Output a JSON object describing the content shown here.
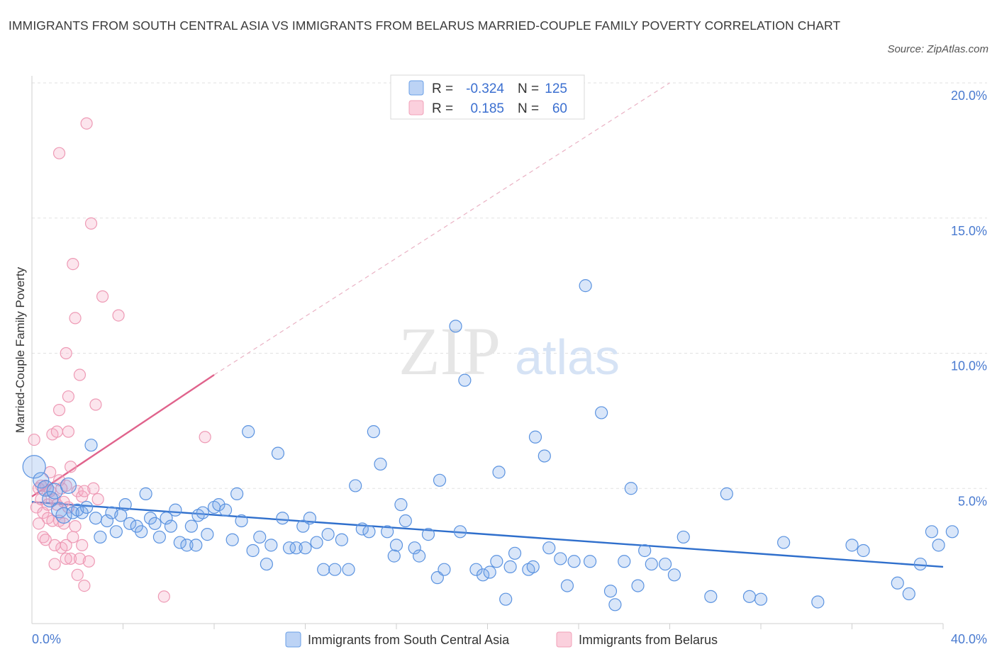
{
  "title": "IMMIGRANTS FROM SOUTH CENTRAL ASIA VS IMMIGRANTS FROM BELARUS MARRIED-COUPLE FAMILY POVERTY CORRELATION CHART",
  "source": "Source: ZipAtlas.com",
  "watermark": {
    "zip": "ZIP",
    "atlas": "atlas"
  },
  "colors": {
    "blue": "#6a9fe6",
    "pink": "#f0a0b8",
    "blue_line": "#2f6fcc",
    "pink_line": "#e0638c",
    "tick": "#4a7bd0"
  },
  "legend": {
    "r_label": "R =",
    "n_label": "N =",
    "rows": [
      {
        "r": "-0.324",
        "n": "125"
      },
      {
        "r": "0.185",
        "n": "60"
      }
    ]
  },
  "bottom_legend": [
    "Immigrants from South Central Asia",
    "Immigrants from Belarus"
  ],
  "chart_data": {
    "type": "scatter",
    "title": "IMMIGRANTS FROM SOUTH CENTRAL ASIA VS IMMIGRANTS FROM BELARUS MARRIED-COUPLE FAMILY POVERTY CORRELATION CHART",
    "xlabel": "",
    "ylabel": "Married-Couple Family Poverty",
    "xlim": [
      0,
      40
    ],
    "ylim": [
      0,
      20
    ],
    "x_tick_labels": [
      "0.0%",
      "40.0%"
    ],
    "y_ticks": [
      5,
      10,
      15,
      20
    ],
    "y_tick_labels": [
      "5.0%",
      "10.0%",
      "15.0%",
      "20.0%"
    ],
    "grid": true,
    "legend_position": "top-center",
    "series": [
      {
        "name": "Immigrants from South Central Asia",
        "color": "#6a9fe6",
        "r": -0.324,
        "n": 125,
        "trend": {
          "x": [
            0,
            40
          ],
          "y": [
            4.5,
            2.1
          ]
        },
        "points": [
          [
            0.1,
            5.8
          ],
          [
            0.4,
            5.3
          ],
          [
            0.6,
            5.0
          ],
          [
            0.8,
            4.6
          ],
          [
            1.0,
            4.9
          ],
          [
            1.2,
            4.2
          ],
          [
            1.4,
            4.0
          ],
          [
            1.6,
            5.1
          ],
          [
            1.8,
            4.1
          ],
          [
            2.0,
            4.2
          ],
          [
            2.2,
            4.1
          ],
          [
            2.4,
            4.3
          ],
          [
            2.6,
            6.6
          ],
          [
            2.8,
            3.9
          ],
          [
            3.0,
            3.2
          ],
          [
            3.3,
            3.8
          ],
          [
            3.5,
            4.1
          ],
          [
            3.7,
            3.4
          ],
          [
            3.9,
            4.0
          ],
          [
            4.1,
            4.4
          ],
          [
            4.3,
            3.7
          ],
          [
            4.6,
            3.6
          ],
          [
            4.8,
            3.4
          ],
          [
            5.0,
            4.8
          ],
          [
            5.2,
            3.9
          ],
          [
            5.4,
            3.7
          ],
          [
            5.6,
            3.2
          ],
          [
            5.9,
            3.9
          ],
          [
            6.1,
            3.6
          ],
          [
            6.3,
            4.2
          ],
          [
            6.5,
            3.0
          ],
          [
            6.8,
            2.9
          ],
          [
            7.0,
            3.6
          ],
          [
            7.3,
            4.0
          ],
          [
            7.5,
            4.1
          ],
          [
            7.7,
            3.3
          ],
          [
            8.0,
            4.3
          ],
          [
            8.2,
            4.4
          ],
          [
            8.5,
            4.2
          ],
          [
            8.8,
            3.1
          ],
          [
            9.0,
            4.8
          ],
          [
            9.2,
            3.8
          ],
          [
            9.5,
            7.1
          ],
          [
            9.7,
            2.7
          ],
          [
            10.0,
            3.2
          ],
          [
            10.3,
            2.2
          ],
          [
            10.5,
            2.9
          ],
          [
            10.8,
            6.3
          ],
          [
            11.0,
            3.9
          ],
          [
            11.3,
            2.8
          ],
          [
            11.6,
            2.8
          ],
          [
            11.9,
            3.6
          ],
          [
            12.2,
            3.9
          ],
          [
            12.5,
            3.0
          ],
          [
            12.8,
            2.0
          ],
          [
            13.0,
            3.3
          ],
          [
            13.3,
            2.0
          ],
          [
            13.6,
            3.1
          ],
          [
            13.9,
            2.0
          ],
          [
            14.2,
            5.1
          ],
          [
            14.5,
            3.5
          ],
          [
            14.8,
            3.4
          ],
          [
            15.0,
            7.1
          ],
          [
            15.3,
            5.9
          ],
          [
            15.6,
            3.4
          ],
          [
            15.9,
            2.5
          ],
          [
            16.2,
            4.4
          ],
          [
            16.4,
            3.8
          ],
          [
            16.8,
            2.8
          ],
          [
            17.0,
            2.5
          ],
          [
            17.4,
            3.3
          ],
          [
            17.8,
            1.7
          ],
          [
            17.9,
            5.3
          ],
          [
            18.1,
            2.0
          ],
          [
            18.6,
            11.0
          ],
          [
            18.8,
            3.4
          ],
          [
            19.0,
            9.0
          ],
          [
            19.5,
            2.0
          ],
          [
            19.8,
            1.8
          ],
          [
            20.1,
            1.9
          ],
          [
            20.4,
            2.3
          ],
          [
            20.5,
            5.6
          ],
          [
            20.8,
            0.9
          ],
          [
            21.0,
            2.1
          ],
          [
            21.2,
            2.6
          ],
          [
            21.8,
            2.0
          ],
          [
            22.1,
            6.9
          ],
          [
            22.5,
            6.2
          ],
          [
            22.7,
            2.8
          ],
          [
            23.2,
            2.4
          ],
          [
            23.5,
            1.4
          ],
          [
            23.8,
            2.3
          ],
          [
            24.3,
            12.5
          ],
          [
            24.5,
            2.3
          ],
          [
            25.0,
            7.8
          ],
          [
            25.4,
            1.2
          ],
          [
            25.6,
            0.7
          ],
          [
            26.0,
            2.3
          ],
          [
            26.3,
            5.0
          ],
          [
            26.6,
            1.4
          ],
          [
            26.9,
            2.7
          ],
          [
            27.2,
            2.2
          ],
          [
            27.8,
            2.2
          ],
          [
            28.2,
            1.8
          ],
          [
            28.6,
            3.2
          ],
          [
            29.8,
            1.0
          ],
          [
            30.5,
            4.8
          ],
          [
            31.5,
            1.0
          ],
          [
            32.0,
            0.9
          ],
          [
            33.0,
            3.0
          ],
          [
            34.5,
            0.8
          ],
          [
            36.0,
            2.9
          ],
          [
            36.5,
            2.7
          ],
          [
            38.0,
            1.5
          ],
          [
            38.5,
            1.1
          ],
          [
            39.0,
            2.2
          ],
          [
            39.5,
            3.4
          ],
          [
            39.8,
            2.9
          ],
          [
            40.4,
            3.4
          ],
          [
            7.2,
            2.9
          ],
          [
            12.0,
            2.8
          ],
          [
            16.0,
            2.9
          ],
          [
            22.0,
            2.1
          ]
        ]
      },
      {
        "name": "Immigrants from Belarus",
        "color": "#f0a0b8",
        "r": 0.185,
        "n": 60,
        "trend": {
          "x": [
            0,
            8
          ],
          "y": [
            4.7,
            9.2
          ]
        },
        "trend_extension": {
          "x": [
            8,
            28
          ],
          "y": [
            9.2,
            20.0
          ]
        },
        "points": [
          [
            0.1,
            6.8
          ],
          [
            0.2,
            4.3
          ],
          [
            0.3,
            5.0
          ],
          [
            0.3,
            3.7
          ],
          [
            0.4,
            4.6
          ],
          [
            0.5,
            3.2
          ],
          [
            0.5,
            4.1
          ],
          [
            0.6,
            5.1
          ],
          [
            0.7,
            3.9
          ],
          [
            0.7,
            4.4
          ],
          [
            0.8,
            5.6
          ],
          [
            0.8,
            4.9
          ],
          [
            0.9,
            7.0
          ],
          [
            0.9,
            3.8
          ],
          [
            1.0,
            4.6
          ],
          [
            1.0,
            2.2
          ],
          [
            1.1,
            7.1
          ],
          [
            1.1,
            4.4
          ],
          [
            1.2,
            5.3
          ],
          [
            1.2,
            3.8
          ],
          [
            1.3,
            5.0
          ],
          [
            1.3,
            2.8
          ],
          [
            1.4,
            4.5
          ],
          [
            1.4,
            3.7
          ],
          [
            1.5,
            5.1
          ],
          [
            1.5,
            2.9
          ],
          [
            1.6,
            7.1
          ],
          [
            1.6,
            4.3
          ],
          [
            1.7,
            5.8
          ],
          [
            1.7,
            2.4
          ],
          [
            1.8,
            13.3
          ],
          [
            1.8,
            3.2
          ],
          [
            1.9,
            11.3
          ],
          [
            1.9,
            3.6
          ],
          [
            2.0,
            4.9
          ],
          [
            2.0,
            1.8
          ],
          [
            2.1,
            9.2
          ],
          [
            2.1,
            2.4
          ],
          [
            2.2,
            4.7
          ],
          [
            2.2,
            2.9
          ],
          [
            2.3,
            4.9
          ],
          [
            2.3,
            1.4
          ],
          [
            2.4,
            18.5
          ],
          [
            2.5,
            2.3
          ],
          [
            2.6,
            14.8
          ],
          [
            2.8,
            8.1
          ],
          [
            2.9,
            4.6
          ],
          [
            3.1,
            12.1
          ],
          [
            3.8,
            11.4
          ],
          [
            1.2,
            17.4
          ],
          [
            1.5,
            10.0
          ],
          [
            1.6,
            8.4
          ],
          [
            1.2,
            7.9
          ],
          [
            5.8,
            1.0
          ],
          [
            7.6,
            6.9
          ],
          [
            1.0,
            2.9
          ],
          [
            0.6,
            3.1
          ],
          [
            1.5,
            2.4
          ],
          [
            2.7,
            5.0
          ],
          [
            0.4,
            5.1
          ]
        ]
      }
    ]
  }
}
